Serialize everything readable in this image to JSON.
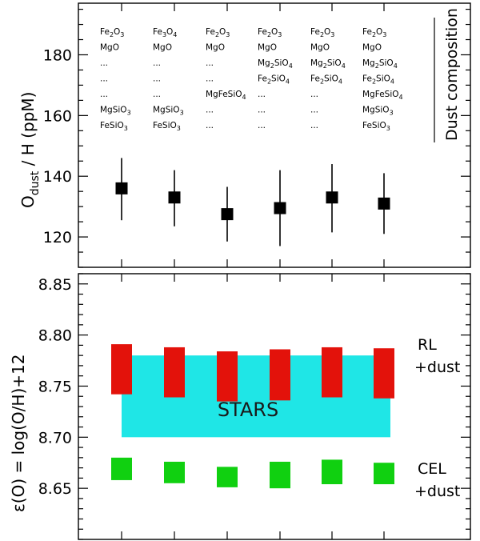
{
  "chart_data": [
    {
      "type": "scatter",
      "panel": "top",
      "ylabel_main": "O",
      "ylabel_sub": "dust",
      "ylabel_rest": " / H (ppM)",
      "ylim": [
        110,
        197
      ],
      "yticks": [
        120,
        140,
        160,
        180
      ],
      "ytick_labels": [
        "120",
        "140",
        "160",
        "180"
      ],
      "x": [
        1,
        2,
        3,
        4,
        5,
        6
      ],
      "values": [
        136,
        133,
        127.5,
        129.5,
        133,
        131
      ],
      "error_low": [
        125.5,
        123.5,
        118.5,
        117,
        121.5,
        121
      ],
      "error_high": [
        146,
        142,
        136.5,
        142,
        144,
        141
      ],
      "legend_title": "Dust composition",
      "compositions": [
        [
          "Fe2O3",
          "MgO",
          "...",
          "...",
          "...",
          "MgSiO3",
          "FeSiO3"
        ],
        [
          "Fe3O4",
          "MgO",
          "...",
          "...",
          "...",
          "MgSiO3",
          "FeSiO3"
        ],
        [
          "Fe2O3",
          "MgO",
          "...",
          "...",
          "MgFeSiO4",
          "...",
          "..."
        ],
        [
          "Fe2O3",
          "MgO",
          "Mg2SiO4",
          "Fe2SiO4",
          "...",
          "...",
          "..."
        ],
        [
          "Fe2O3",
          "MgO",
          "Mg2SiO4",
          "Fe2SiO4",
          "...",
          "...",
          "..."
        ],
        [
          "Fe2O3",
          "MgO",
          "Mg2SiO4",
          "Fe2SiO4",
          "MgFeSiO4",
          "MgSiO3",
          "FeSiO3"
        ]
      ]
    },
    {
      "type": "bar",
      "panel": "bottom",
      "ylabel": "ε(O) = log(O/H)+12",
      "ylim": [
        8.6,
        8.86
      ],
      "yticks": [
        8.65,
        8.7,
        8.75,
        8.8,
        8.85
      ],
      "ytick_labels": [
        "8.65",
        "8.70",
        "8.75",
        "8.80",
        "8.85"
      ],
      "x": [
        1,
        2,
        3,
        4,
        5,
        6
      ],
      "series": [
        {
          "name": "RL +dust",
          "color": "#e3120b",
          "low": [
            8.742,
            8.739,
            8.735,
            8.736,
            8.739,
            8.738
          ],
          "high": [
            8.791,
            8.788,
            8.784,
            8.786,
            8.788,
            8.787
          ]
        },
        {
          "name": "CEL +dust",
          "color": "#10d010",
          "low": [
            8.658,
            8.655,
            8.651,
            8.65,
            8.654,
            8.654
          ],
          "high": [
            8.68,
            8.676,
            8.671,
            8.676,
            8.678,
            8.675
          ]
        }
      ],
      "stars_band": {
        "label": "STARS",
        "low": 8.7,
        "high": 8.78,
        "color": "#1fe6e6"
      },
      "labels": {
        "rl_line1": "RL",
        "rl_line2": "+dust",
        "cel_line1": "CEL",
        "cel_line2": "+dust"
      }
    }
  ]
}
